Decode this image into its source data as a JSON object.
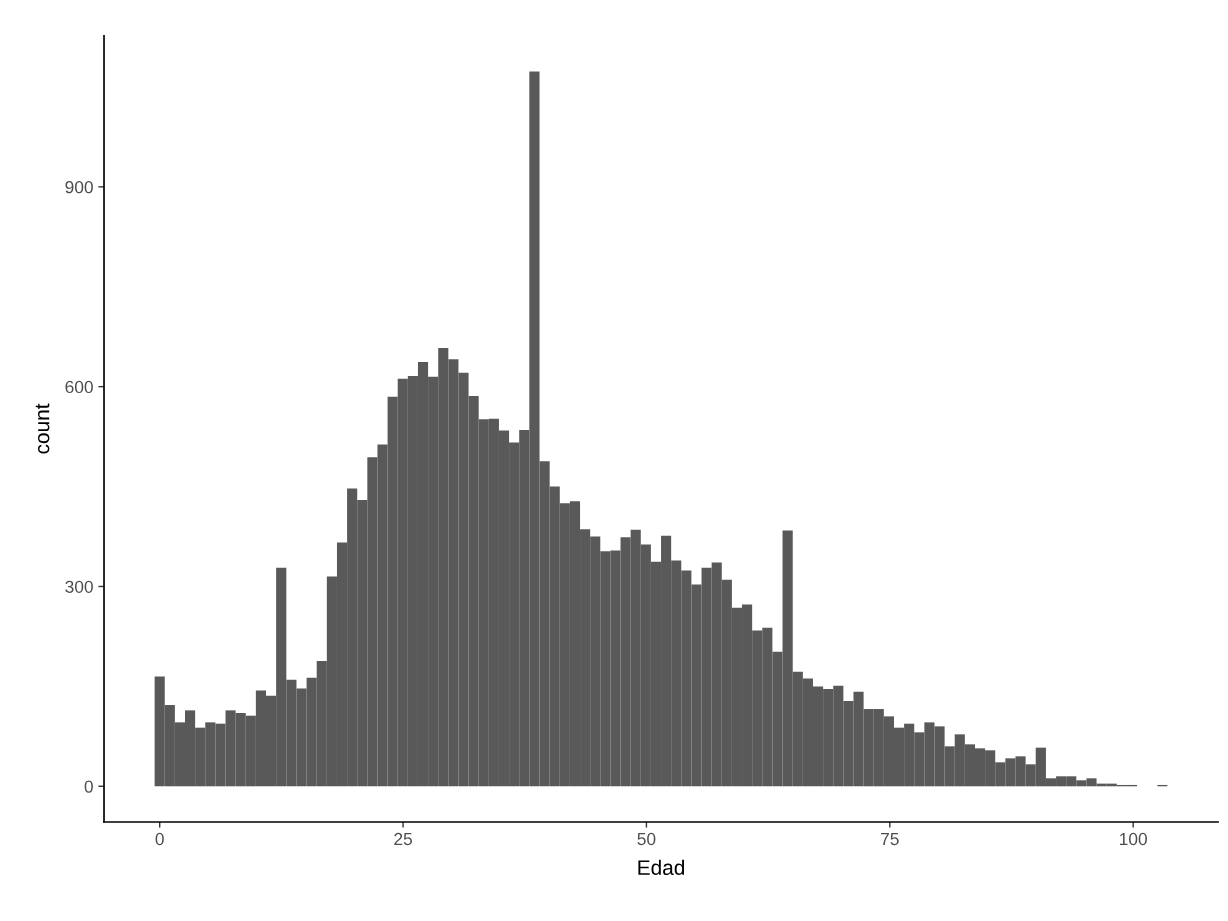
{
  "chart_data": {
    "type": "histogram",
    "xlabel": "Edad",
    "ylabel": "count",
    "color": "#595959",
    "bins": [
      -0.52,
      0.52,
      1.56,
      2.6,
      3.64,
      4.68,
      5.72,
      6.76,
      7.8,
      8.84,
      9.88,
      10.92,
      11.96,
      13.01,
      14.05,
      15.09,
      16.13,
      17.17,
      18.21,
      19.25,
      20.29,
      21.33,
      22.37,
      23.41,
      24.45,
      25.49,
      26.53,
      27.57,
      28.61,
      29.65,
      30.69,
      31.73,
      32.77,
      33.81,
      34.85,
      35.89,
      36.93,
      37.97,
      39.02,
      40.06,
      41.1,
      42.14,
      43.18,
      44.22,
      45.26,
      46.3,
      47.34,
      48.38,
      49.42,
      50.46,
      51.5,
      52.54,
      53.58,
      54.62,
      55.66,
      56.7,
      57.74,
      58.78,
      59.82,
      60.86,
      61.9,
      62.94,
      63.98,
      65.03,
      66.07,
      67.11,
      68.15,
      69.19,
      70.23,
      71.27,
      72.31,
      73.35,
      74.39,
      75.43,
      76.47,
      77.51,
      78.55,
      79.59,
      80.63,
      81.67,
      82.71,
      83.75,
      84.79,
      85.83,
      86.87,
      87.91,
      88.95,
      89.99,
      91.04,
      92.08,
      93.12,
      94.16,
      95.2,
      96.24,
      97.28,
      98.32,
      99.36,
      100.4,
      101.44,
      102.48,
      103.52
    ],
    "values": [
      165,
      122,
      96,
      114,
      88,
      96,
      94,
      114,
      110,
      106,
      144,
      136,
      328,
      160,
      147,
      163,
      188,
      315,
      366,
      447,
      430,
      494,
      513,
      585,
      612,
      616,
      637,
      615,
      658,
      641,
      621,
      586,
      551,
      552,
      534,
      516,
      535,
      1073,
      488,
      450,
      425,
      428,
      386,
      375,
      353,
      354,
      374,
      385,
      363,
      337,
      376,
      339,
      324,
      303,
      328,
      336,
      310,
      268,
      273,
      234,
      238,
      202,
      384,
      172,
      162,
      150,
      146,
      151,
      128,
      142,
      116,
      116,
      105,
      88,
      94,
      81,
      96,
      90,
      60,
      78,
      63,
      57,
      54,
      36,
      42,
      45,
      33,
      58,
      12,
      15,
      15,
      9,
      12,
      4,
      4,
      2,
      2,
      0,
      0,
      2
    ],
    "xlim": [
      -5.72,
      108.72
    ],
    "ylim": [
      -53.6,
      1126.6
    ],
    "xticks": [
      0,
      25,
      50,
      75,
      100
    ],
    "yticks": [
      0,
      300,
      600,
      900
    ],
    "grid": false,
    "legend": false
  }
}
